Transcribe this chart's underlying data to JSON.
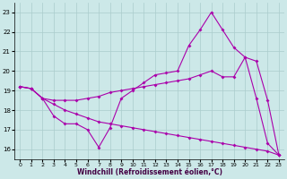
{
  "xlabel": "Windchill (Refroidissement éolien,°C)",
  "background_color": "#cce8e8",
  "line_color": "#aa00aa",
  "grid_color": "#aacccc",
  "xlim": [
    -0.5,
    23.5
  ],
  "ylim": [
    15.5,
    23.5
  ],
  "xticks": [
    0,
    1,
    2,
    3,
    4,
    5,
    6,
    7,
    8,
    9,
    10,
    11,
    12,
    13,
    14,
    15,
    16,
    17,
    18,
    19,
    20,
    21,
    22,
    23
  ],
  "yticks": [
    16,
    17,
    18,
    19,
    20,
    21,
    22,
    23
  ],
  "line1_x": [
    0,
    1,
    2,
    3,
    4,
    5,
    6,
    7,
    8,
    9,
    10,
    11,
    12,
    13,
    14,
    15,
    16,
    17,
    18,
    19,
    20,
    21,
    22,
    23
  ],
  "line1_y": [
    19.2,
    19.1,
    18.6,
    17.7,
    17.3,
    17.3,
    17.0,
    16.1,
    17.1,
    18.6,
    19.0,
    19.4,
    19.8,
    19.9,
    20.0,
    21.3,
    22.1,
    23.0,
    22.1,
    21.2,
    20.7,
    18.6,
    16.3,
    15.7
  ],
  "line2_x": [
    0,
    1,
    2,
    3,
    4,
    5,
    6,
    7,
    8,
    9,
    10,
    11,
    12,
    13,
    14,
    15,
    16,
    17,
    18,
    19,
    20,
    21,
    22,
    23
  ],
  "line2_y": [
    19.2,
    19.1,
    18.6,
    18.5,
    18.5,
    18.5,
    18.6,
    18.7,
    18.9,
    19.0,
    19.1,
    19.2,
    19.3,
    19.4,
    19.5,
    19.6,
    19.8,
    20.0,
    19.7,
    19.7,
    20.7,
    20.5,
    18.5,
    15.7
  ],
  "line3_x": [
    0,
    1,
    2,
    3,
    4,
    5,
    6,
    7,
    8,
    9,
    10,
    11,
    12,
    13,
    14,
    15,
    16,
    17,
    18,
    19,
    20,
    21,
    22,
    23
  ],
  "line3_y": [
    19.2,
    19.1,
    18.6,
    18.3,
    18.0,
    17.8,
    17.6,
    17.4,
    17.3,
    17.2,
    17.1,
    17.0,
    16.9,
    16.8,
    16.7,
    16.6,
    16.5,
    16.4,
    16.3,
    16.2,
    16.1,
    16.0,
    15.9,
    15.7
  ]
}
